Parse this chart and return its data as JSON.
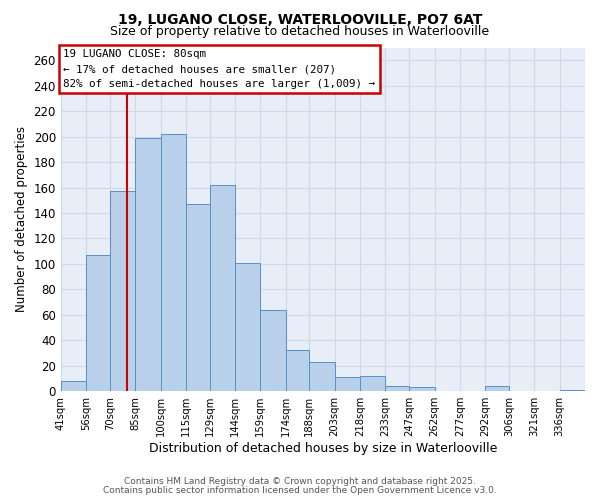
{
  "title": "19, LUGANO CLOSE, WATERLOOVILLE, PO7 6AT",
  "subtitle": "Size of property relative to detached houses in Waterlooville",
  "xlabel": "Distribution of detached houses by size in Waterlooville",
  "ylabel": "Number of detached properties",
  "categories": [
    "41sqm",
    "56sqm",
    "70sqm",
    "85sqm",
    "100sqm",
    "115sqm",
    "129sqm",
    "144sqm",
    "159sqm",
    "174sqm",
    "188sqm",
    "203sqm",
    "218sqm",
    "233sqm",
    "247sqm",
    "262sqm",
    "277sqm",
    "292sqm",
    "306sqm",
    "321sqm",
    "336sqm"
  ],
  "bin_lefts": [
    41,
    56,
    70,
    85,
    100,
    115,
    129,
    144,
    159,
    174,
    188,
    203,
    218,
    233,
    247,
    262,
    277,
    292,
    306,
    321,
    336
  ],
  "bin_rights": [
    56,
    70,
    85,
    100,
    115,
    129,
    144,
    159,
    174,
    188,
    203,
    218,
    233,
    247,
    262,
    277,
    292,
    306,
    321,
    336,
    351
  ],
  "values": [
    8,
    107,
    157,
    199,
    202,
    147,
    162,
    101,
    64,
    32,
    23,
    11,
    12,
    4,
    3,
    0,
    0,
    4,
    0,
    0,
    1
  ],
  "bar_color": "#b8d0ea",
  "bar_edge_color": "#5590c8",
  "grid_color": "#d0d8e8",
  "bg_color": "#e8eef8",
  "annotation_text_line1": "19 LUGANO CLOSE: 80sqm",
  "annotation_text_line2": "← 17% of detached houses are smaller (207)",
  "annotation_text_line3": "82% of semi-detached houses are larger (1,009) →",
  "vline_x": 80,
  "vline_color": "#cc0000",
  "ylim": [
    0,
    270
  ],
  "yticks": [
    0,
    20,
    40,
    60,
    80,
    100,
    120,
    140,
    160,
    180,
    200,
    220,
    240,
    260
  ],
  "footer_line1": "Contains HM Land Registry data © Crown copyright and database right 2025.",
  "footer_line2": "Contains public sector information licensed under the Open Government Licence v3.0."
}
